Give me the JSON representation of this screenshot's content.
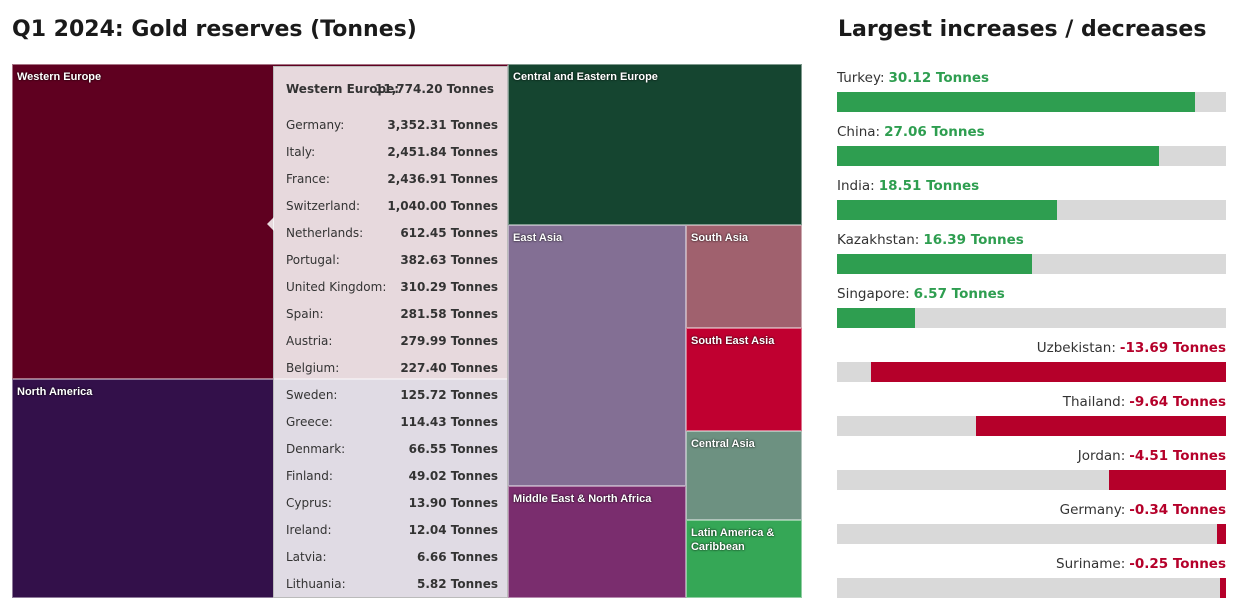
{
  "chart_data": [
    {
      "type": "treemap",
      "title": "Q1 2024: Gold reserves (Tonnes)",
      "categories": [
        "Western Europe",
        "North America",
        "Central and Eastern Europe",
        "East Asia",
        "Middle East & North Africa",
        "South Asia",
        "South East Asia",
        "Central Asia",
        "Latin America & Caribbean"
      ],
      "values": [
        11774.2,
        8190,
        3570,
        3500,
        1500,
        900,
        900,
        780,
        680
      ],
      "colors": [
        "#5f0020",
        "#33104a",
        "#154530",
        "#836f94",
        "#7a2d6e",
        "#a0616e",
        "#c00030",
        "#6d9181",
        "#35a756"
      ],
      "tooltip": {
        "title": "Western Europe:",
        "value": 11774.2,
        "value_label": "11,774.20 Tonnes",
        "categories": [
          "Germany:",
          "Italy:",
          "France:",
          "Switzerland:",
          "Netherlands:",
          "Portugal:",
          "United Kingdom:",
          "Spain:",
          "Austria:",
          "Belgium:",
          "Sweden:",
          "Greece:",
          "Denmark:",
          "Finland:",
          "Cyprus:",
          "Ireland:",
          "Latvia:",
          "Lithuania:"
        ],
        "values": [
          3352.31,
          2451.84,
          2436.91,
          1040.0,
          612.45,
          382.63,
          310.29,
          281.58,
          279.99,
          227.4,
          125.72,
          114.43,
          66.55,
          49.02,
          13.9,
          12.04,
          6.66,
          5.82
        ],
        "value_labels": [
          "3,352.31 Tonnes",
          "2,451.84 Tonnes",
          "2,436.91 Tonnes",
          "1,040.00 Tonnes",
          "612.45 Tonnes",
          "382.63 Tonnes",
          "310.29 Tonnes",
          "281.58 Tonnes",
          "279.99 Tonnes",
          "227.40 Tonnes",
          "125.72 Tonnes",
          "114.43 Tonnes",
          "66.55 Tonnes",
          "49.02 Tonnes",
          "13.90 Tonnes",
          "12.04 Tonnes",
          "6.66 Tonnes",
          "5.82 Tonnes"
        ]
      }
    },
    {
      "type": "bar",
      "title": "Largest increases / decreases",
      "categories": [
        "Turkey:",
        "China:",
        "India:",
        "Kazakhstan:",
        "Singapore:",
        "Uzbekistan:",
        "Thailand:",
        "Jordan:",
        "Germany:",
        "Suriname:"
      ],
      "values": [
        30.12,
        27.06,
        18.51,
        16.39,
        6.57,
        -13.69,
        -9.64,
        -4.51,
        -0.34,
        -0.25
      ],
      "value_labels": [
        "30.12 Tonnes",
        "27.06 Tonnes",
        "18.51 Tonnes",
        "16.39 Tonnes",
        "6.57 Tonnes",
        "-13.69 Tonnes",
        "-9.64 Tonnes",
        "-4.51 Tonnes",
        "-0.34 Tonnes",
        "-0.25 Tonnes"
      ],
      "xlim": [
        -15,
        32.7
      ],
      "positive_color": "#2e9e50",
      "negative_color": "#b5002a",
      "track_color": "#d9d9d9"
    }
  ]
}
